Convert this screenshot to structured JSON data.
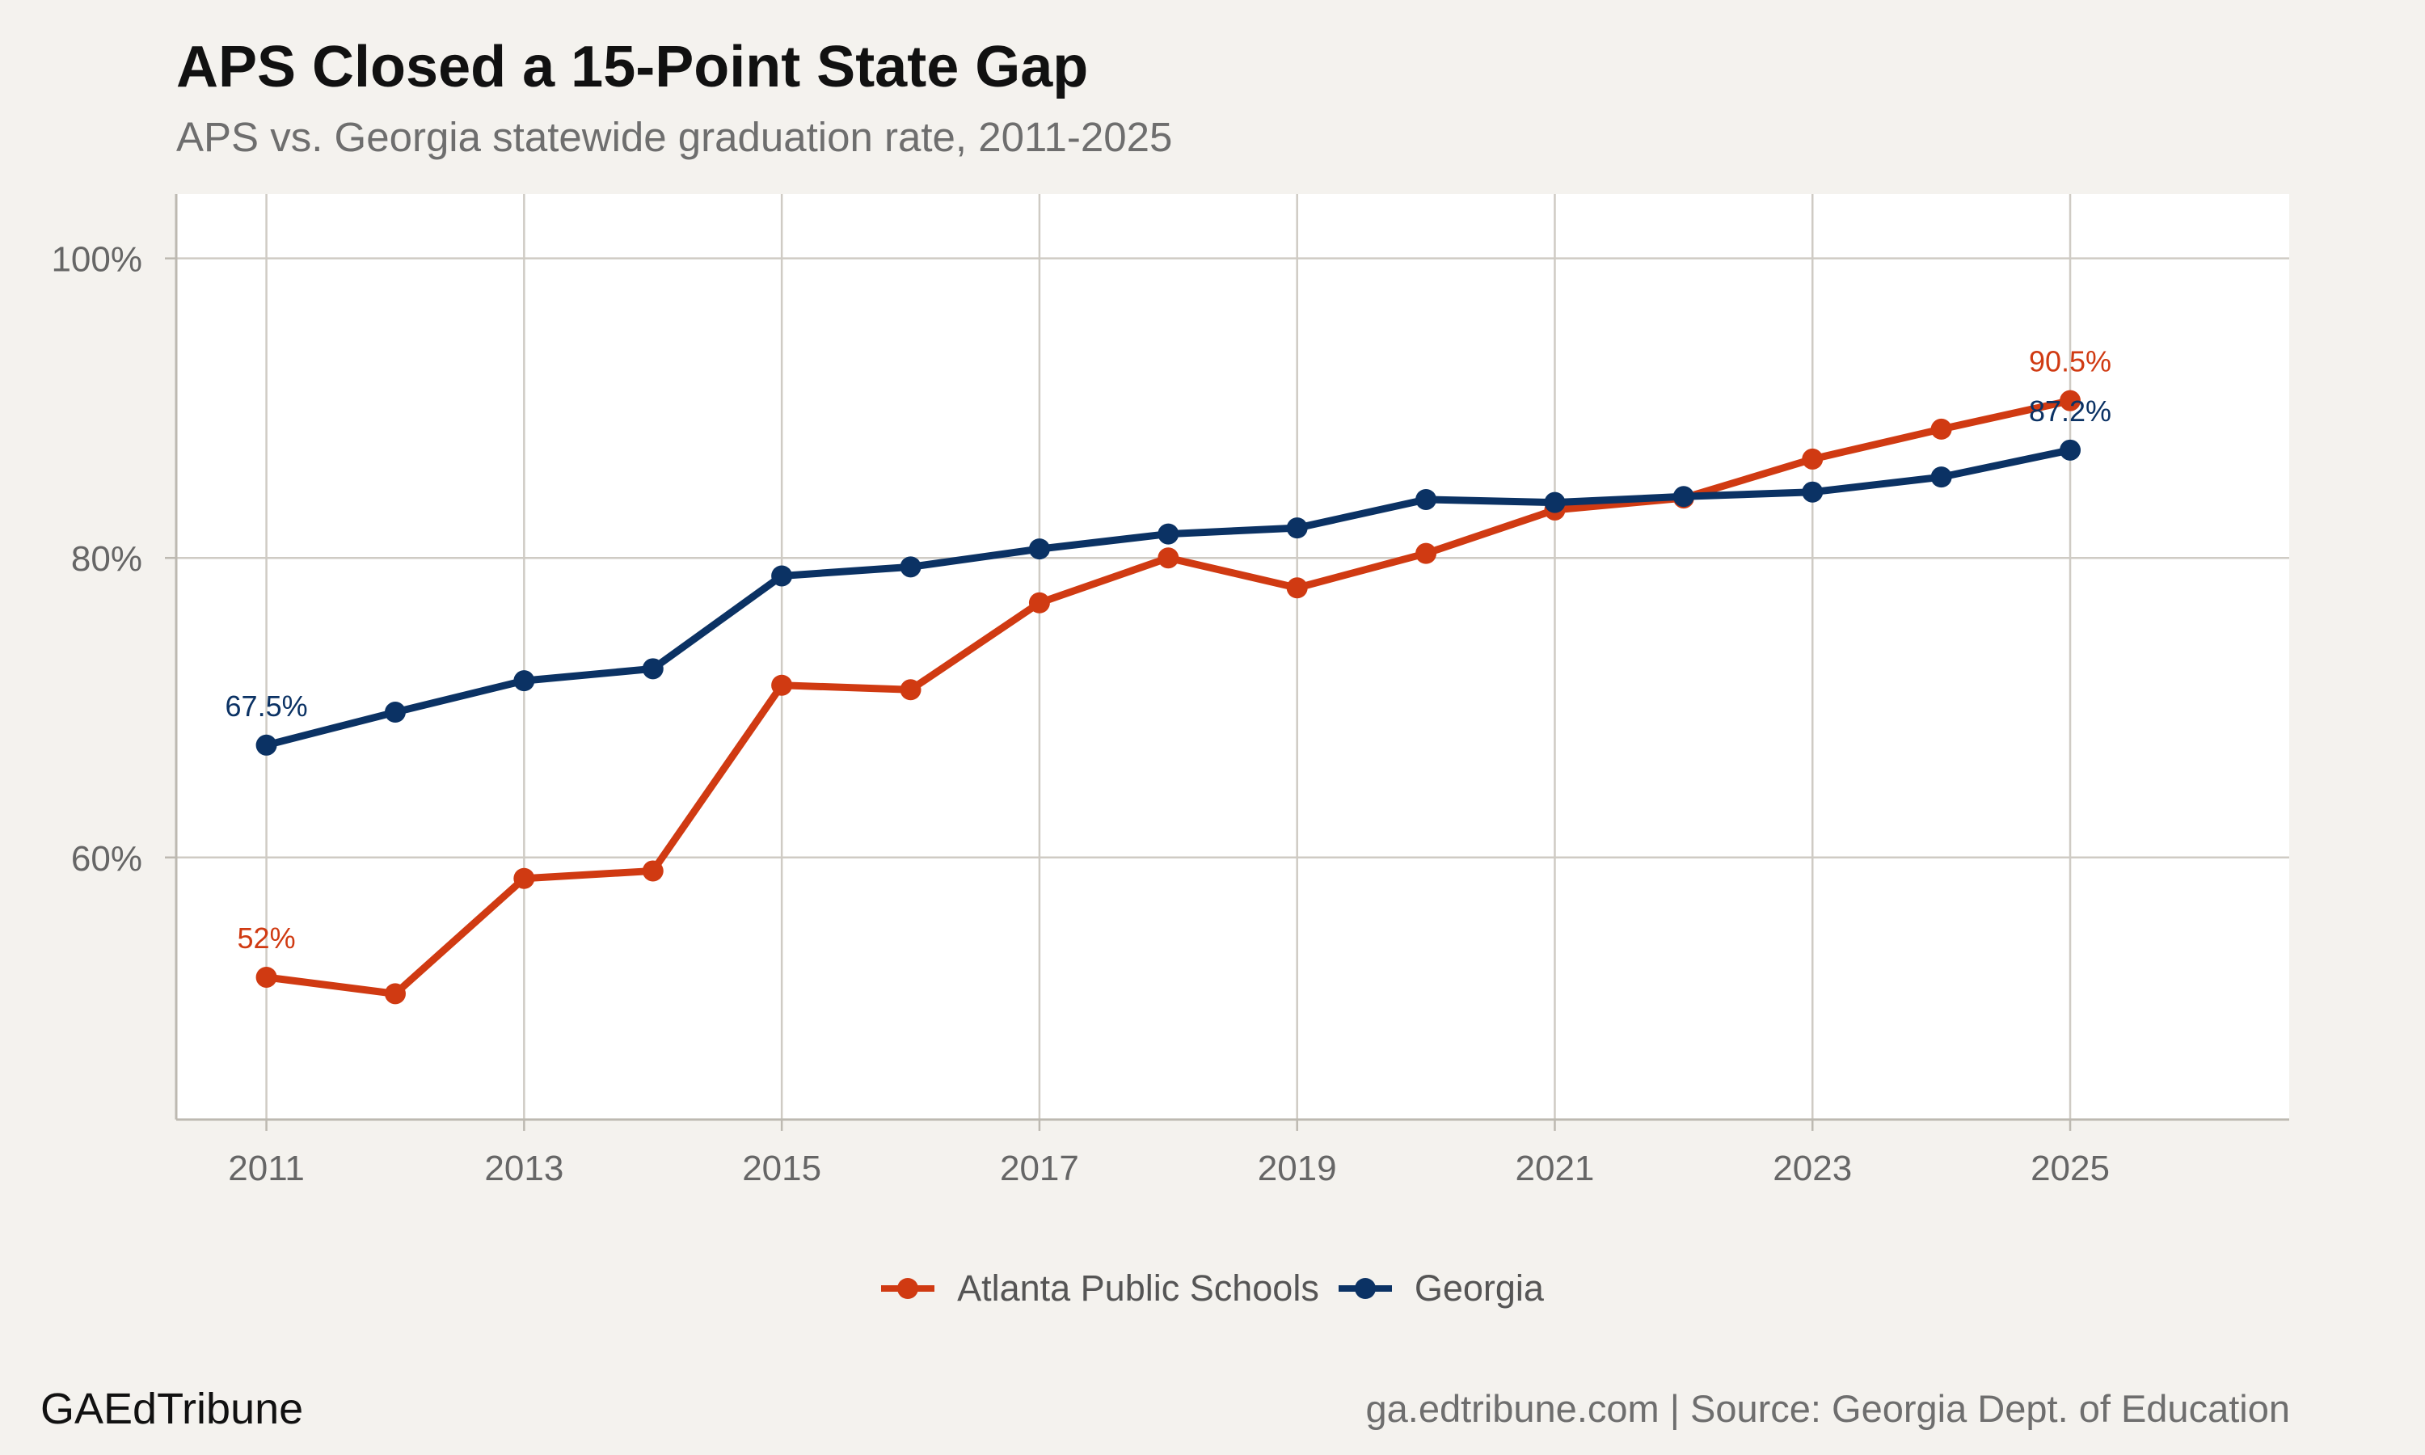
{
  "header": {
    "title": "APS Closed a 15-Point State Gap",
    "subtitle": "APS vs. Georgia statewide graduation rate, 2011-2025"
  },
  "footer": {
    "brand": "GAEdTribune",
    "source": "ga.edtribune.com | Source: Georgia Dept. of Education"
  },
  "chart_data": {
    "type": "line",
    "x": [
      2011,
      2012,
      2013,
      2014,
      2015,
      2016,
      2017,
      2018,
      2019,
      2020,
      2021,
      2022,
      2023,
      2024,
      2025
    ],
    "xlim": [
      2010.3,
      2026.7
    ],
    "ylim": [
      42.5,
      104.3
    ],
    "x_ticks": [
      {
        "value": 2011,
        "label": "2011"
      },
      {
        "value": 2013,
        "label": "2013"
      },
      {
        "value": 2015,
        "label": "2015"
      },
      {
        "value": 2017,
        "label": "2017"
      },
      {
        "value": 2019,
        "label": "2019"
      },
      {
        "value": 2021,
        "label": "2021"
      },
      {
        "value": 2023,
        "label": "2023"
      },
      {
        "value": 2025,
        "label": "2025"
      }
    ],
    "y_ticks": [
      {
        "value": 60,
        "label": "60%"
      },
      {
        "value": 80,
        "label": "80%"
      },
      {
        "value": 100,
        "label": "100%"
      }
    ],
    "grid": true,
    "legend_position": "bottom",
    "series": [
      {
        "name": "Atlanta Public Schools",
        "color": "#d03a12",
        "values": [
          52.0,
          50.9,
          58.6,
          59.1,
          71.5,
          71.2,
          77.0,
          80.0,
          78.0,
          80.3,
          83.2,
          84.0,
          86.6,
          88.6,
          90.5
        ],
        "annotations": [
          {
            "x": 2011,
            "value": 52.0,
            "label": "52%"
          },
          {
            "x": 2025,
            "value": 90.5,
            "label": "90.5%"
          }
        ]
      },
      {
        "name": "Georgia",
        "color": "#0b3264",
        "values": [
          67.5,
          69.7,
          71.8,
          72.6,
          78.8,
          79.4,
          80.6,
          81.6,
          82.0,
          83.9,
          83.7,
          84.1,
          84.4,
          85.4,
          87.2
        ],
        "annotations": [
          {
            "x": 2011,
            "value": 67.5,
            "label": "67.5%"
          },
          {
            "x": 2025,
            "value": 87.2,
            "label": "87.2%"
          }
        ]
      }
    ]
  }
}
